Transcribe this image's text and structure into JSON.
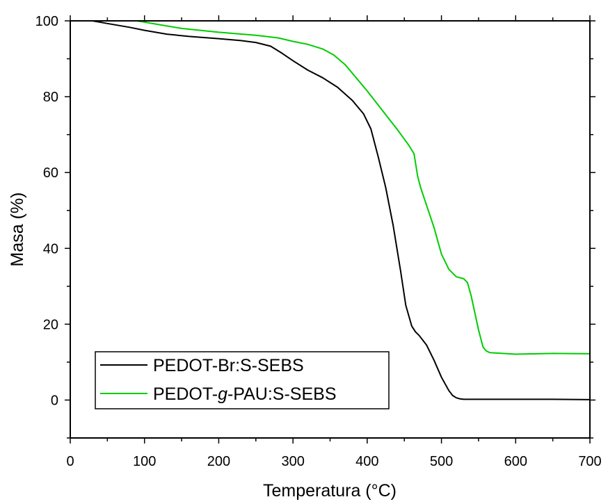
{
  "chart_data": {
    "type": "line",
    "xlabel": "Temperatura (°C)",
    "ylabel": "Masa (%)",
    "xlim": [
      0,
      700
    ],
    "ylim": [
      -10,
      100
    ],
    "xticks": [
      0,
      100,
      200,
      300,
      400,
      500,
      600,
      700
    ],
    "yticks": [
      0,
      20,
      40,
      60,
      80,
      100
    ],
    "grid": false,
    "legend_position": "bottom-left",
    "series": [
      {
        "name": "PEDOT-Br:S-SEBS",
        "color": "#000000",
        "x": [
          30,
          50,
          80,
          100,
          130,
          160,
          200,
          230,
          250,
          270,
          285,
          300,
          320,
          340,
          360,
          380,
          395,
          405,
          415,
          425,
          435,
          445,
          452,
          460,
          465,
          470,
          480,
          490,
          500,
          510,
          515,
          520,
          525,
          530,
          550,
          600,
          650,
          700
        ],
        "y": [
          100,
          99.3,
          98.3,
          97.5,
          96.5,
          95.9,
          95.3,
          94.8,
          94.3,
          93.3,
          91.5,
          89.5,
          87,
          85,
          82.5,
          79,
          75.5,
          71.5,
          64,
          56,
          46,
          34,
          25,
          19.5,
          18,
          17,
          14.5,
          10.5,
          6,
          2.5,
          1.2,
          0.6,
          0.3,
          0.2,
          0.2,
          0.2,
          0.2,
          0.1
        ]
      },
      {
        "name": "PEDOT-g-PAU:S-SEBS",
        "color": "#00cc00",
        "x": [
          90,
          120,
          150,
          200,
          250,
          280,
          300,
          320,
          340,
          355,
          370,
          385,
          400,
          420,
          440,
          455,
          463,
          468,
          472,
          478,
          490,
          500,
          510,
          520,
          530,
          535,
          540,
          545,
          550,
          556,
          560,
          565,
          600,
          650,
          700
        ],
        "y": [
          100,
          99,
          98,
          97,
          96.2,
          95.5,
          94.6,
          93.8,
          92.6,
          91,
          88.5,
          85,
          81.5,
          76.5,
          71.5,
          67.5,
          65,
          59,
          56,
          52.5,
          45.5,
          38.5,
          34.5,
          32.5,
          32,
          31,
          27.5,
          23,
          18.5,
          14,
          13,
          12.5,
          12.1,
          12.3,
          12.2
        ]
      }
    ]
  }
}
